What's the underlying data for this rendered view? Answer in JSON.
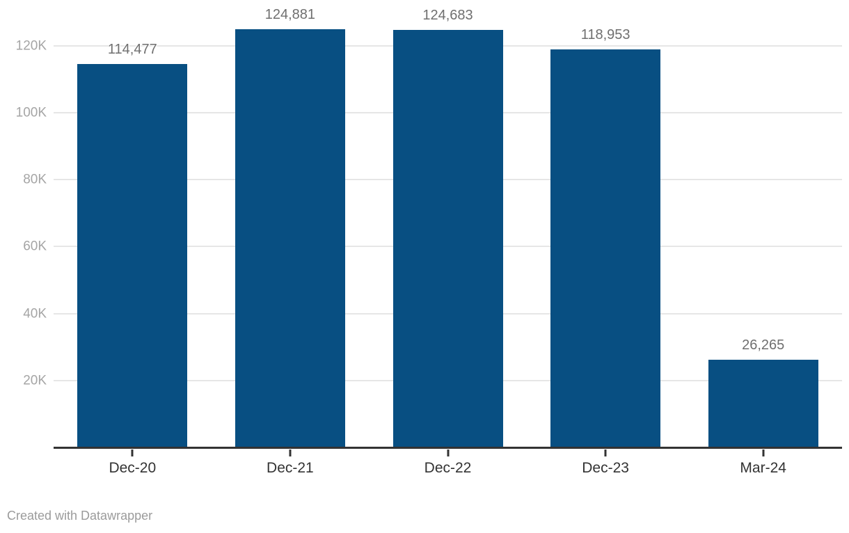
{
  "chart_data": {
    "type": "bar",
    "categories": [
      "Dec-20",
      "Dec-21",
      "Dec-22",
      "Dec-23",
      "Mar-24"
    ],
    "values": [
      114477,
      124881,
      124683,
      118953,
      26265
    ],
    "value_labels": [
      "114,477",
      "124,881",
      "124,683",
      "118,953",
      "26,265"
    ],
    "title": "",
    "xlabel": "",
    "ylabel": "",
    "ylim": [
      0,
      133680
    ],
    "y_ticks": [
      {
        "label": "20K",
        "value": 20000
      },
      {
        "label": "40K",
        "value": 40000
      },
      {
        "label": "60K",
        "value": 60000
      },
      {
        "label": "80K",
        "value": 80000
      },
      {
        "label": "100K",
        "value": 100000
      },
      {
        "label": "120K",
        "value": 120000
      }
    ],
    "grid": true,
    "legend_position": "none",
    "bar_color": "#084f82"
  },
  "colors": {
    "bar": "#084f82",
    "gridline": "#e6e6e6",
    "baseline": "#333333",
    "y_label": "#a5a5a5",
    "value_label": "#6f6f6f",
    "x_label": "#333333",
    "footer": "#9b9b9b"
  },
  "footer": {
    "attribution": "Created with Datawrapper"
  }
}
